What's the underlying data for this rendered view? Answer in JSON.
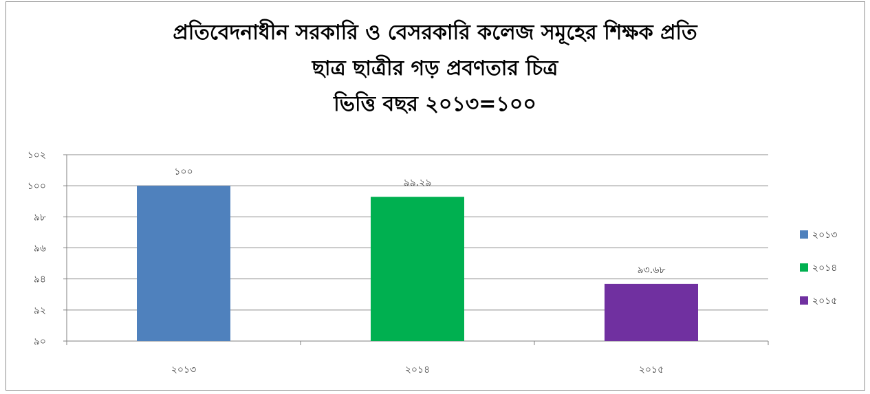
{
  "chart_data": {
    "type": "bar",
    "title": [
      "প্রতিবেদনাধীন সরকারি ও বেসরকারি কলেজ সমূহের শিক্ষক প্রতি",
      "ছাত্র ছাত্রীর গড় প্রবণতার চিত্র",
      "ভিত্তি বছর ২০১৩=১০০"
    ],
    "categories": [
      "২০১৩",
      "২০১৪",
      "২০১৫"
    ],
    "values": [
      100,
      99.29,
      93.68
    ],
    "data_labels": [
      "১০০",
      "৯৯.২৯",
      "৯৩.৬৮"
    ],
    "colors": [
      "#4f81bd",
      "#00b050",
      "#7030a0"
    ],
    "ylim": [
      90,
      102
    ],
    "yticks": [
      90,
      92,
      94,
      96,
      98,
      100,
      102
    ],
    "ytick_labels": [
      "৯০",
      "৯২",
      "৯৪",
      "৯৬",
      "৯৮",
      "১০০",
      "১০২"
    ],
    "legend": [
      "২০১৩",
      "২০১৪",
      "২০১৫"
    ],
    "legend_position": "right",
    "grid": true
  }
}
